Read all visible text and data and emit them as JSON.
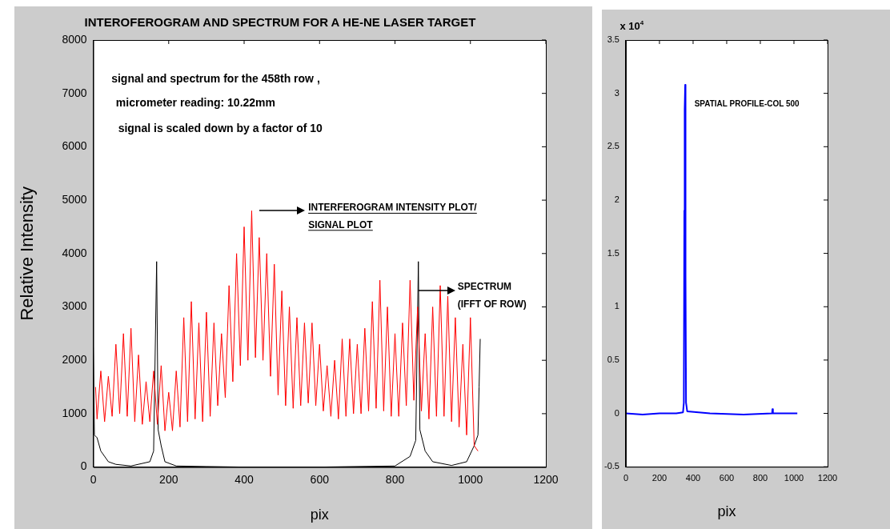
{
  "chart_data": [
    {
      "type": "line",
      "title": "INTEROFEROGRAM AND SPECTRUM FOR A HE-NE LASER TARGET",
      "xlabel": "pix",
      "ylabel": "Relative Intensity",
      "xlim": [
        0,
        1200
      ],
      "xticks": [
        0,
        200,
        400,
        600,
        800,
        1000,
        1200
      ],
      "ylim": [
        0,
        8000
      ],
      "yticks": [
        0,
        1000,
        2000,
        3000,
        4000,
        5000,
        6000,
        7000,
        8000
      ],
      "annotations": [
        "signal and spectrum for the 458th row ,",
        "micrometer reading: 10.22mm",
        "signal is scaled down by a factor of 10",
        "INTERFEROGRAM INTENSITY PLOT/",
        "SIGNAL PLOT",
        "SPECTRUM",
        "(IFFT OF ROW)"
      ],
      "series": [
        {
          "color": "#ff0000",
          "x": [
            6,
            10,
            20,
            30,
            40,
            50,
            60,
            70,
            80,
            90,
            100,
            110,
            120,
            130,
            140,
            150,
            160,
            170,
            180,
            190,
            200,
            210,
            220,
            230,
            240,
            250,
            260,
            270,
            280,
            290,
            300,
            310,
            320,
            330,
            340,
            350,
            360,
            370,
            380,
            390,
            400,
            410,
            420,
            430,
            440,
            450,
            460,
            470,
            480,
            490,
            500,
            510,
            520,
            530,
            540,
            550,
            560,
            570,
            580,
            590,
            600,
            610,
            620,
            630,
            640,
            650,
            660,
            670,
            680,
            690,
            700,
            710,
            720,
            730,
            740,
            750,
            760,
            770,
            780,
            790,
            800,
            810,
            820,
            830,
            840,
            850,
            860,
            870,
            880,
            890,
            900,
            910,
            920,
            930,
            940,
            950,
            960,
            970,
            980,
            990,
            1000,
            1010,
            1020
          ],
          "values": [
            1500,
            900,
            1800,
            850,
            1700,
            950,
            2300,
            1000,
            2500,
            950,
            2600,
            850,
            2100,
            800,
            1600,
            850,
            1800,
            800,
            1900,
            680,
            1400,
            680,
            1800,
            750,
            2800,
            850,
            3100,
            900,
            2700,
            850,
            2900,
            950,
            2700,
            1150,
            2500,
            1300,
            3400,
            1600,
            4000,
            1900,
            4500,
            2000,
            4800,
            2050,
            4300,
            2000,
            4000,
            1700,
            3800,
            1350,
            3300,
            1150,
            3000,
            1100,
            2800,
            1150,
            2700,
            1200,
            2700,
            1150,
            2300,
            1050,
            1900,
            950,
            2000,
            900,
            2400,
            950,
            2400,
            1000,
            2300,
            1000,
            2600,
            1050,
            3100,
            1100,
            3500,
            1050,
            3000,
            950,
            2500,
            950,
            2700,
            1150,
            3500,
            1250,
            3000,
            1050,
            2500,
            900,
            3000,
            950,
            3400,
            950,
            3200,
            850,
            2800,
            750,
            2300,
            600,
            2800,
            400,
            300
          ]
        },
        {
          "color": "#000000",
          "x": [
            0,
            3,
            10,
            20,
            40,
            60,
            100,
            150,
            160,
            168,
            172,
            180,
            190,
            220,
            300,
            400,
            600,
            800,
            840,
            855,
            862,
            866,
            880,
            900,
            950,
            990,
            1010,
            1020,
            1023,
            1026
          ],
          "values": [
            2250,
            600,
            550,
            300,
            100,
            50,
            20,
            100,
            300,
            3850,
            700,
            400,
            100,
            20,
            10,
            0,
            0,
            20,
            200,
            500,
            3850,
            700,
            300,
            100,
            30,
            100,
            400,
            600,
            1500,
            2400
          ]
        }
      ]
    },
    {
      "type": "line",
      "xlabel": "pix",
      "xlim": [
        0,
        1200
      ],
      "xticks": [
        0,
        200,
        400,
        600,
        800,
        1000,
        1200
      ],
      "ylim": [
        -0.5,
        3.5
      ],
      "yticks": [
        -0.5,
        0,
        0.5,
        1,
        1.5,
        2,
        2.5,
        3,
        3.5
      ],
      "annotations": [
        "x 10$^{4}$",
        "SPATIAL PROFILE-COL 500"
      ],
      "series": [
        {
          "color": "#0000ff",
          "x": [
            0,
            100,
            200,
            300,
            340,
            345,
            348,
            350,
            353,
            355,
            358,
            365,
            500,
            700,
            870,
            872,
            875,
            1020
          ],
          "values": [
            0,
            -0.01,
            0,
            0,
            0.01,
            0.1,
            1.9,
            2.85,
            3.08,
            1.3,
            0.1,
            0.02,
            0,
            -0.01,
            0,
            0.04,
            0,
            0
          ]
        }
      ]
    }
  ]
}
